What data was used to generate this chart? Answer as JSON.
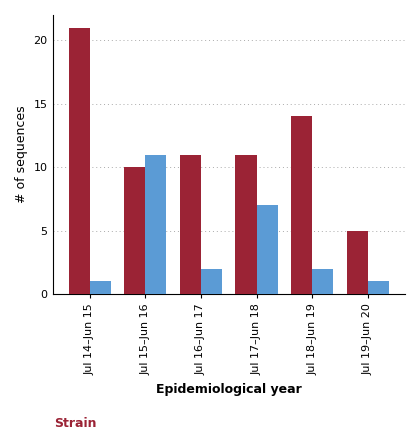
{
  "categories": [
    "Jul 14–Jun 15",
    "Jul 15–Jun 16",
    "Jul 16–Jun 17",
    "Jul 17–Jun 18",
    "Jul 18–Jun 19",
    "Jul 19–Jun 20"
  ],
  "red_values": [
    21,
    10,
    11,
    11,
    14,
    5
  ],
  "blue_values": [
    1,
    11,
    2,
    7,
    2,
    1
  ],
  "red_color": "#9B2335",
  "blue_color": "#5B9BD5",
  "ylabel": "# of sequences",
  "xlabel": "Epidemiological year",
  "legend_label": "Strain",
  "legend_color": "#9B2335",
  "ylim": [
    0,
    22
  ],
  "yticks": [
    0,
    5,
    10,
    15,
    20
  ],
  "bar_width": 0.38,
  "background_color": "#ffffff",
  "grid_color": "#aaaaaa",
  "title": ""
}
